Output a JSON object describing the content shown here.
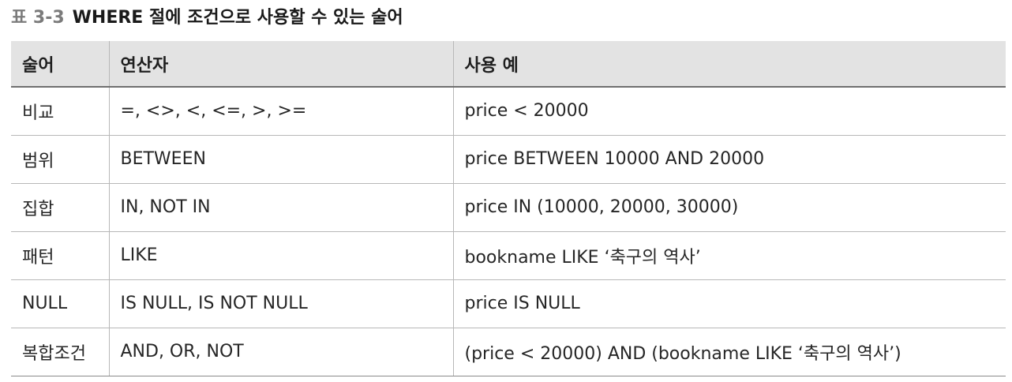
{
  "caption": {
    "number": "표 3-3",
    "title": "WHERE 절에 조건으로 사용할 수 있는 술어"
  },
  "table": {
    "headers": [
      "술어",
      "연산자",
      "사용 예"
    ],
    "rows": [
      [
        "비교",
        "=, <>, <, <=, >, >=",
        "price < 20000"
      ],
      [
        "범위",
        "BETWEEN",
        "price BETWEEN 10000 AND 20000"
      ],
      [
        "집합",
        "IN, NOT IN",
        "price IN (10000, 20000, 30000)"
      ],
      [
        "패턴",
        "LIKE",
        "bookname LIKE ‘축구의 역사’"
      ],
      [
        "NULL",
        "IS NULL, IS NOT NULL",
        "price IS NULL"
      ],
      [
        "복합조건",
        "AND, OR, NOT",
        "(price < 20000) AND (bookname LIKE ‘축구의 역사’)"
      ]
    ]
  },
  "colors": {
    "header_background": "#e3e3e3",
    "caption_number": "#7b7b7b",
    "grid_line": "#b8b8b8"
  }
}
